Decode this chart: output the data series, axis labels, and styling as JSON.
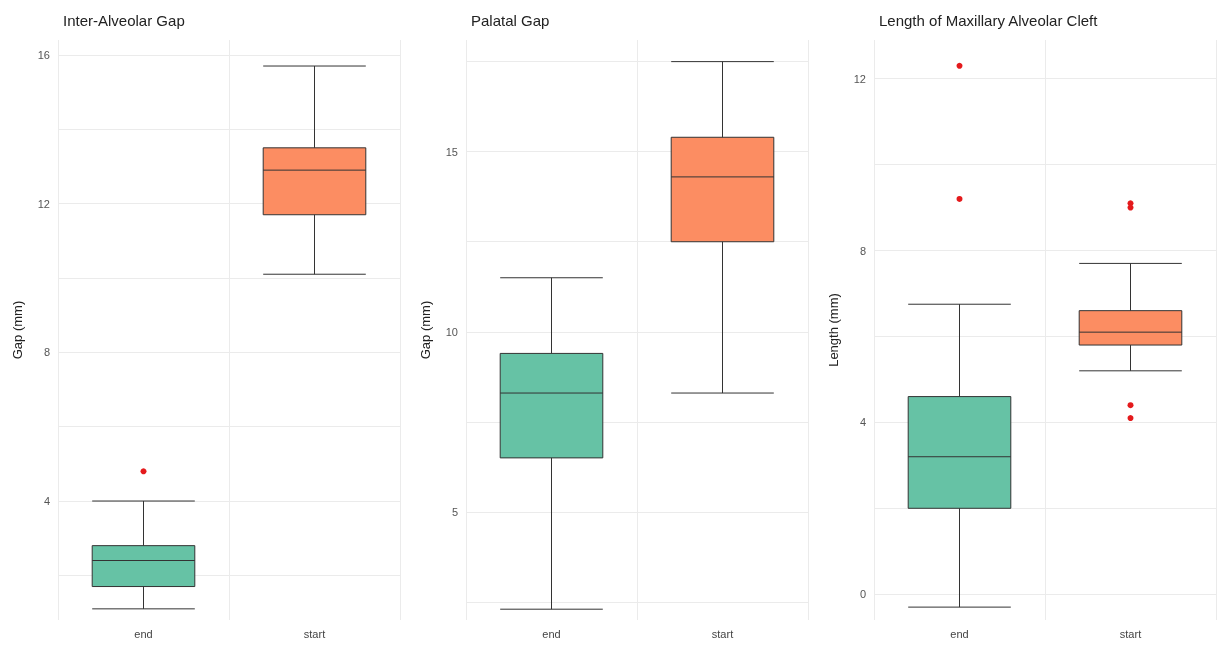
{
  "chart_data": [
    {
      "type": "box",
      "title": "Inter-Alveolar Gap",
      "ylabel": "Gap (mm)",
      "categories": [
        "end",
        "start"
      ],
      "ylim": [
        0.8,
        16.4
      ],
      "yticks": [
        {
          "value": 2,
          "label": null
        },
        4,
        {
          "value": 6,
          "label": null
        },
        8,
        {
          "value": 10,
          "label": null
        },
        12,
        {
          "value": 14,
          "label": null
        },
        16
      ],
      "grid": true,
      "series": [
        {
          "colors": [
            "#66c2a5",
            "#fc8d62"
          ],
          "boxes": [
            {
              "low": 1.1,
              "q1": 1.7,
              "median": 2.4,
              "q3": 2.8,
              "high": 4.0
            },
            {
              "low": 10.1,
              "q1": 11.7,
              "median": 12.9,
              "q3": 13.5,
              "high": 15.7
            }
          ]
        },
        {
          "type": "scatter",
          "color": "#e41a1c",
          "x": [
            "end"
          ],
          "values": [
            4.8
          ]
        }
      ]
    },
    {
      "type": "box",
      "title": "Palatal Gap",
      "ylabel": "Gap (mm)",
      "categories": [
        "end",
        "start"
      ],
      "ylim": [
        2.0,
        18.1
      ],
      "yticks": [
        {
          "value": 2.5,
          "label": null
        },
        5,
        {
          "value": 7.5,
          "label": null
        },
        10,
        {
          "value": 12.5,
          "label": null
        },
        15,
        {
          "value": 17.5,
          "label": null
        }
      ],
      "grid": true,
      "series": [
        {
          "colors": [
            "#66c2a5",
            "#fc8d62"
          ],
          "boxes": [
            {
              "low": 2.3,
              "q1": 6.5,
              "median": 8.3,
              "q3": 9.4,
              "high": 11.5
            },
            {
              "low": 8.3,
              "q1": 12.5,
              "median": 14.3,
              "q3": 15.4,
              "high": 17.5
            }
          ]
        }
      ]
    },
    {
      "type": "box",
      "title": "Length of Maxillary Alveolar Cleft",
      "ylabel": "Length (mm)",
      "categories": [
        "end",
        "start"
      ],
      "ylim": [
        -0.6,
        12.9
      ],
      "yticks": [
        0,
        {
          "value": 2,
          "label": null
        },
        4,
        {
          "value": 6,
          "label": null
        },
        8,
        {
          "value": 10,
          "label": null
        },
        12
      ],
      "grid": true,
      "series": [
        {
          "colors": [
            "#66c2a5",
            "#fc8d62"
          ],
          "boxes": [
            {
              "low": -0.3,
              "q1": 2.0,
              "median": 3.2,
              "q3": 4.6,
              "high": 6.75
            },
            {
              "low": 5.2,
              "q1": 5.8,
              "median": 6.1,
              "q3": 6.6,
              "high": 7.7
            }
          ]
        },
        {
          "type": "scatter",
          "color": "#e41a1c",
          "x": [
            "end",
            "end",
            "start",
            "start",
            "start",
            "start",
            "start"
          ],
          "values": [
            12.3,
            9.2,
            9.1,
            9.0,
            4.4,
            4.1,
            null
          ]
        }
      ]
    }
  ]
}
